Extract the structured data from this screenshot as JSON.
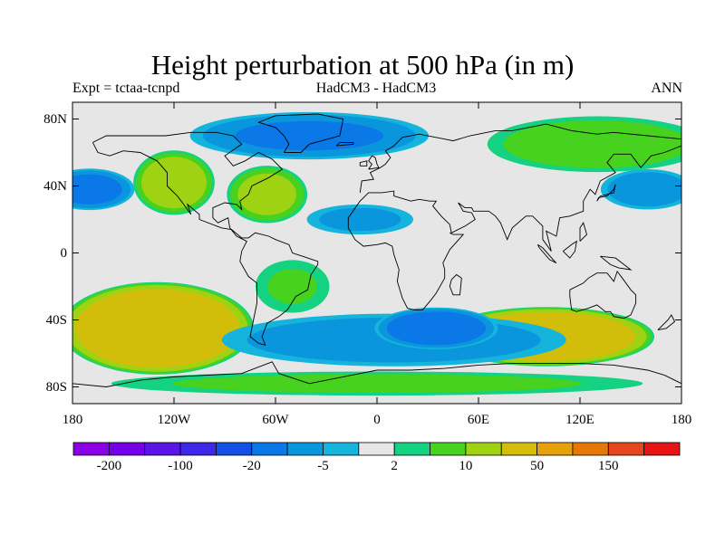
{
  "title": "Height perturbation at 500 hPa (in m)",
  "subtitle_left": "Expt = tctaa-tcnpd",
  "subtitle_center": "HadCM3 - HadCM3",
  "subtitle_right": "ANN",
  "map": {
    "projection": "cylindrical-equidistant",
    "lon_range": [
      -180,
      180
    ],
    "lat_range": [
      -90,
      90
    ],
    "background_color": "#e6e6e6",
    "y_ticks": [
      {
        "lat": 80,
        "label": "80N"
      },
      {
        "lat": 40,
        "label": "40N"
      },
      {
        "lat": 0,
        "label": "0"
      },
      {
        "lat": -40,
        "label": "40S"
      },
      {
        "lat": -80,
        "label": "80S"
      }
    ],
    "x_ticks": [
      {
        "lon": -180,
        "label": "180"
      },
      {
        "lon": -120,
        "label": "120W"
      },
      {
        "lon": -60,
        "label": "60W"
      },
      {
        "lon": 0,
        "label": "0"
      },
      {
        "lon": 60,
        "label": "60E"
      },
      {
        "lon": 120,
        "label": "120E"
      },
      {
        "lon": 180,
        "label": "180"
      }
    ]
  },
  "colorbar": {
    "colors": [
      "#8c00e6",
      "#7300e6",
      "#5a14e6",
      "#3c28e6",
      "#1450e6",
      "#0a78e6",
      "#0a96dc",
      "#14b4dc",
      "#e6e6e6",
      "#14d282",
      "#46d21e",
      "#a0d214",
      "#d2be0a",
      "#e6a00a",
      "#e6780a",
      "#e6461e",
      "#e61414"
    ],
    "boundaries": [
      -200,
      -150,
      -100,
      -50,
      -20,
      -10,
      -5,
      -2,
      2,
      5,
      10,
      20,
      50,
      100,
      150,
      200
    ],
    "labels": [
      {
        "after_box": 1,
        "text": "-200"
      },
      {
        "after_box": 3,
        "text": "-100"
      },
      {
        "after_box": 5,
        "text": "-20"
      },
      {
        "after_box": 7,
        "text": "-5"
      },
      {
        "after_box": 9,
        "text": "2"
      },
      {
        "after_box": 11,
        "text": "10"
      },
      {
        "after_box": 13,
        "text": "50"
      },
      {
        "after_box": 15,
        "text": "150"
      }
    ]
  },
  "anomaly_regions": [
    {
      "name": "south-pacific-high",
      "lon": -130,
      "lat": -45,
      "rlon": 58,
      "rlat": 28,
      "value": 40
    },
    {
      "name": "south-indian-high",
      "lon": 100,
      "lat": -50,
      "rlon": 65,
      "rlat": 18,
      "value": 35
    },
    {
      "name": "southern-ocean-low",
      "lon": 10,
      "lat": -52,
      "rlon": 110,
      "rlat": 17,
      "value": -8
    },
    {
      "name": "south-atlantic-indian-low",
      "lon": 35,
      "lat": -45,
      "rlon": 38,
      "rlat": 13,
      "value": -15
    },
    {
      "name": "antarctic-high",
      "lon": 0,
      "lat": -78,
      "rlon": 175,
      "rlat": 8,
      "value": 6
    },
    {
      "name": "north-pacific-low",
      "lon": -170,
      "lat": 38,
      "rlon": 28,
      "rlat": 13,
      "value": -12
    },
    {
      "name": "western-pacific-low",
      "lon": 160,
      "lat": 38,
      "rlon": 30,
      "rlat": 13,
      "value": -8
    },
    {
      "name": "west-america-high",
      "lon": -120,
      "lat": 42,
      "rlon": 25,
      "rlat": 20,
      "value": 15
    },
    {
      "name": "east-america-high",
      "lon": -65,
      "lat": 35,
      "rlon": 25,
      "rlat": 18,
      "value": 12
    },
    {
      "name": "arctic-low",
      "lon": -40,
      "lat": 70,
      "rlon": 75,
      "rlat": 15,
      "value": -10
    },
    {
      "name": "siberia-high",
      "lon": 130,
      "lat": 65,
      "rlon": 70,
      "rlat": 18,
      "value": 8
    },
    {
      "name": "north-atlantic-low",
      "lon": -10,
      "lat": 20,
      "rlon": 35,
      "rlat": 10,
      "value": -6
    },
    {
      "name": "south-america-high",
      "lon": -50,
      "lat": -20,
      "rlon": 25,
      "rlat": 18,
      "value": 5
    }
  ]
}
